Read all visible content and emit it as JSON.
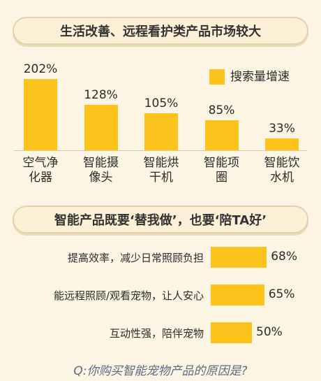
{
  "chart_data": [
    {
      "type": "bar",
      "title": "生活改善、远程看护类产品市场较大",
      "categories": [
        "空气净化器",
        "智能摄像头",
        "智能烘干机",
        "智能项圈",
        "智能饮水机"
      ],
      "series": [
        {
          "name": "搜索量增速",
          "color": "#fbc31c",
          "values": [
            202,
            128,
            105,
            85,
            33
          ],
          "value_labels": [
            "202%",
            "128%",
            "105%",
            "85%",
            "33%"
          ]
        }
      ]
    },
    {
      "type": "hbar",
      "title": "智能产品既要‘替我做’，也要‘陪TA好’",
      "categories": [
        "提高效率，减少日常照顾负担",
        "能远程照顾/观看宠物，让人安心",
        "互动性强，陪伴宠物"
      ],
      "color": "#fbc31c",
      "values": [
        68,
        65,
        50
      ],
      "value_labels": [
        "68%",
        "65%",
        "50%"
      ]
    }
  ],
  "footer": "Q:你购买智能宠物产品的原因是?"
}
